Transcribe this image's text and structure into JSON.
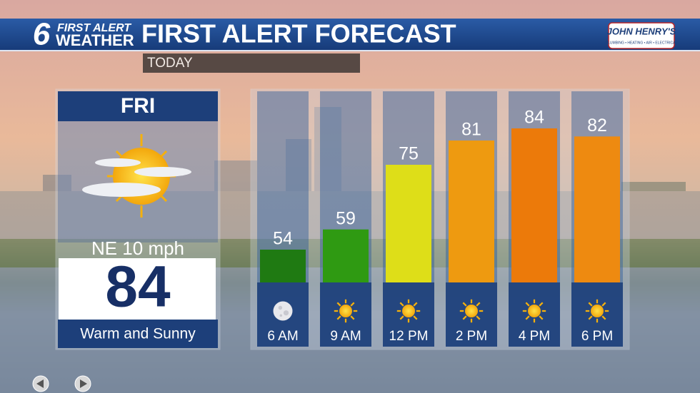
{
  "header": {
    "logo_number": "6",
    "logo_line1": "FIRST ALERT",
    "logo_line2": "WEATHER",
    "title": "FIRST ALERT FORECAST",
    "sponsor": "JOHN HENRY'S",
    "sponsor_tagline": "PLUMBING • HEATING • AIR • ELECTRICAL",
    "period": "TODAY"
  },
  "day_panel": {
    "day": "FRI",
    "wind": "NE 10 mph",
    "high": "84",
    "summary": "Warm and Sunny"
  },
  "chart_data": {
    "type": "bar",
    "categories": [
      "6 AM",
      "9 AM",
      "12 PM",
      "2 PM",
      "4 PM",
      "6 PM"
    ],
    "values": [
      54,
      59,
      75,
      81,
      84,
      82
    ],
    "colors": [
      "#1f7a12",
      "#2f9a12",
      "#dede18",
      "#ee9a10",
      "#ec7a0a",
      "#ee8a10"
    ]
  }
}
